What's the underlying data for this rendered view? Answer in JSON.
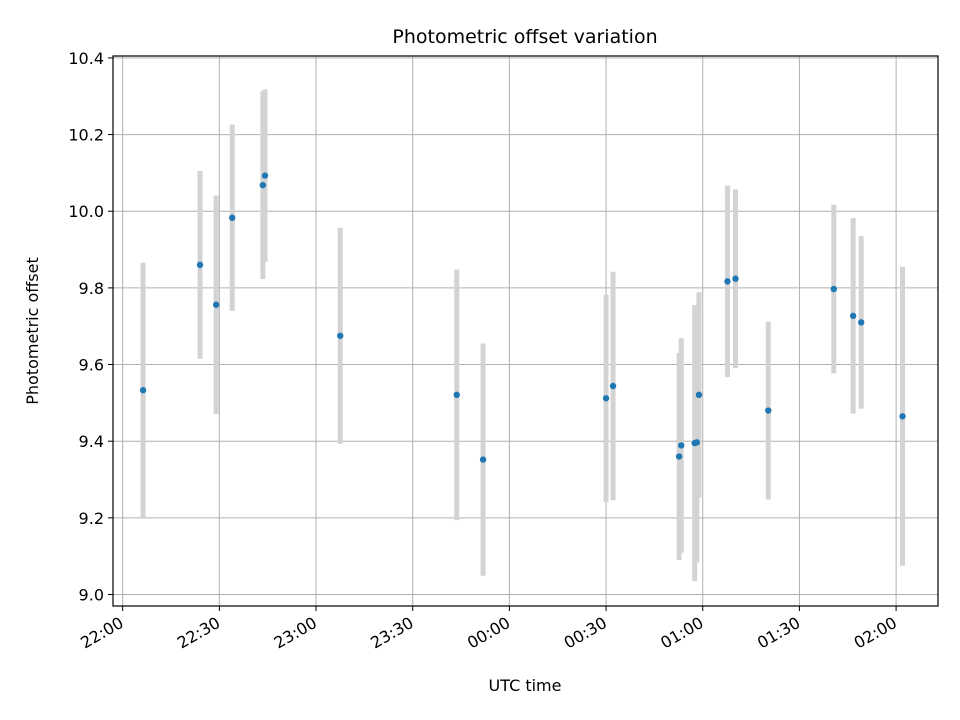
{
  "chart_data": {
    "type": "scatter",
    "title": "Photometric offset variation",
    "xlabel": "UTC time",
    "ylabel": "Photometric offset",
    "x_axis_type": "time",
    "xlim": [
      "2000-01-01T21:57:00",
      "2000-01-02T02:13:00"
    ],
    "ylim": [
      8.97,
      10.405
    ],
    "x_ticks": [
      {
        "value": "2000-01-01T22:00:00",
        "label": "22:00"
      },
      {
        "value": "2000-01-01T22:30:00",
        "label": "22:30"
      },
      {
        "value": "2000-01-01T23:00:00",
        "label": "23:00"
      },
      {
        "value": "2000-01-01T23:30:00",
        "label": "23:30"
      },
      {
        "value": "2000-01-02T00:00:00",
        "label": "00:00"
      },
      {
        "value": "2000-01-02T00:30:00",
        "label": "00:30"
      },
      {
        "value": "2000-01-02T01:00:00",
        "label": "01:00"
      },
      {
        "value": "2000-01-02T01:30:00",
        "label": "01:30"
      },
      {
        "value": "2000-01-02T02:00:00",
        "label": "02:00"
      }
    ],
    "y_ticks": [
      {
        "value": 9.0,
        "label": "9.0"
      },
      {
        "value": 9.2,
        "label": "9.2"
      },
      {
        "value": 9.4,
        "label": "9.4"
      },
      {
        "value": 9.6,
        "label": "9.6"
      },
      {
        "value": 9.8,
        "label": "9.8"
      },
      {
        "value": 10.0,
        "label": "10.0"
      },
      {
        "value": 10.2,
        "label": "10.2"
      },
      {
        "value": 10.4,
        "label": "10.4"
      }
    ],
    "grid": true,
    "point_color": "#1f77b4",
    "errorbar_color": "#d3d3d3",
    "points": [
      {
        "x": "2000-01-01T22:06:20",
        "y": 9.533,
        "yerr": 0.333
      },
      {
        "x": "2000-01-01T22:24:00",
        "y": 9.86,
        "yerr": 0.245
      },
      {
        "x": "2000-01-01T22:29:00",
        "y": 9.756,
        "yerr": 0.285
      },
      {
        "x": "2000-01-01T22:34:00",
        "y": 9.983,
        "yerr": 0.243
      },
      {
        "x": "2000-01-01T22:43:30",
        "y": 10.068,
        "yerr": 0.245
      },
      {
        "x": "2000-01-01T22:44:10",
        "y": 10.093,
        "yerr": 0.225
      },
      {
        "x": "2000-01-01T23:07:30",
        "y": 9.675,
        "yerr": 0.282
      },
      {
        "x": "2000-01-01T23:43:40",
        "y": 9.521,
        "yerr": 0.327
      },
      {
        "x": "2000-01-01T23:51:50",
        "y": 9.352,
        "yerr": 0.303
      },
      {
        "x": "2000-01-02T00:30:00",
        "y": 9.512,
        "yerr": 0.27
      },
      {
        "x": "2000-01-02T00:32:10",
        "y": 9.544,
        "yerr": 0.298
      },
      {
        "x": "2000-01-02T00:52:40",
        "y": 9.36,
        "yerr": 0.27
      },
      {
        "x": "2000-01-02T00:53:20",
        "y": 9.389,
        "yerr": 0.28
      },
      {
        "x": "2000-01-02T00:57:30",
        "y": 9.395,
        "yerr": 0.36
      },
      {
        "x": "2000-01-02T00:58:10",
        "y": 9.397,
        "yerr": 0.313
      },
      {
        "x": "2000-01-02T00:58:50",
        "y": 9.521,
        "yerr": 0.268
      },
      {
        "x": "2000-01-02T01:07:40",
        "y": 9.817,
        "yerr": 0.25
      },
      {
        "x": "2000-01-02T01:10:10",
        "y": 9.824,
        "yerr": 0.233
      },
      {
        "x": "2000-01-02T01:20:20",
        "y": 9.48,
        "yerr": 0.232
      },
      {
        "x": "2000-01-02T01:40:40",
        "y": 9.797,
        "yerr": 0.22
      },
      {
        "x": "2000-01-02T01:46:40",
        "y": 9.727,
        "yerr": 0.255
      },
      {
        "x": "2000-01-02T01:49:10",
        "y": 9.71,
        "yerr": 0.225
      },
      {
        "x": "2000-01-02T02:02:00",
        "y": 9.465,
        "yerr": 0.39
      }
    ]
  }
}
